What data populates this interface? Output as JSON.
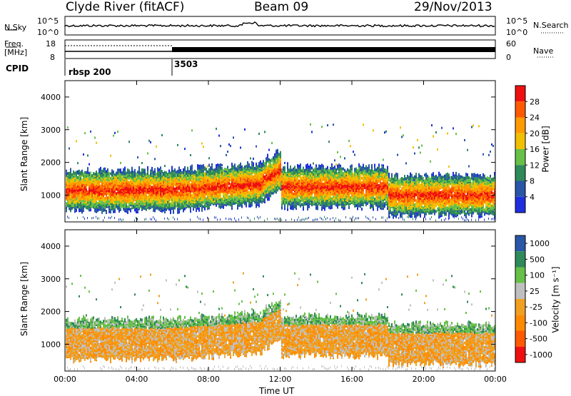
{
  "header": {
    "station": "Clyde River (fitACF)",
    "beam": "Beam 09",
    "date": "29/Nov/2013"
  },
  "noise_panel": {
    "left_label": "N.Sky",
    "right_label": "N.Search",
    "left_ticks": [
      "10^5",
      "10^0"
    ],
    "right_ticks": [
      "10^5",
      "10^0"
    ]
  },
  "freq_panel": {
    "left_label_top": "Freq.",
    "left_label_unit": "[MHz]",
    "left_ticks": [
      "18",
      "8"
    ],
    "right_label": "Nave",
    "right_ticks": [
      "60",
      "0"
    ]
  },
  "cpid": {
    "label": "CPID",
    "programs": [
      {
        "name": "rbsp 200",
        "start_hour": 0
      },
      {
        "name": "3503",
        "start_hour": 6
      }
    ]
  },
  "colors": {
    "power_scale": [
      "#1f2fe0",
      "#2a56a6",
      "#2f8a5a",
      "#67c048",
      "#f0c000",
      "#ff9a00",
      "#ff5a00",
      "#ee1010"
    ],
    "velocity_scale": [
      "#ee1010",
      "#ff5a00",
      "#ff8a00",
      "#f0a020",
      "#bfbfbf",
      "#67c048",
      "#2f8a5a",
      "#2a56a6"
    ]
  },
  "chart_data": [
    {
      "type": "heatmap",
      "name": "power",
      "title": "",
      "ylabel": "Slant Range [km]",
      "y_ticks": [
        1000,
        2000,
        3000,
        4000
      ],
      "ylim": [
        180,
        4500
      ],
      "x_ticks": [
        "00:00",
        "04:00",
        "08:00",
        "12:00",
        "16:00",
        "20:00",
        "00:00"
      ],
      "xlim_hours": [
        0,
        24
      ],
      "colorbar_label": "Power [dB]",
      "colorbar_ticks": [
        "4",
        "8",
        "12",
        "16",
        "20",
        "24",
        "28"
      ],
      "colorbar_range": [
        0,
        32
      ]
    },
    {
      "type": "heatmap",
      "name": "velocity",
      "title": "",
      "xlabel": "Time UT",
      "ylabel": "Slant Range [km]",
      "y_ticks": [
        1000,
        2000,
        3000,
        4000
      ],
      "ylim": [
        180,
        4500
      ],
      "x_ticks": [
        "00:00",
        "04:00",
        "08:00",
        "12:00",
        "16:00",
        "20:00",
        "00:00"
      ],
      "xlim_hours": [
        0,
        24
      ],
      "colorbar_label": "Velocity [m s⁻¹]",
      "colorbar_ticks": [
        "1000",
        "500",
        "100",
        "25",
        "-25",
        "-100",
        "-500",
        "-1000"
      ]
    }
  ]
}
